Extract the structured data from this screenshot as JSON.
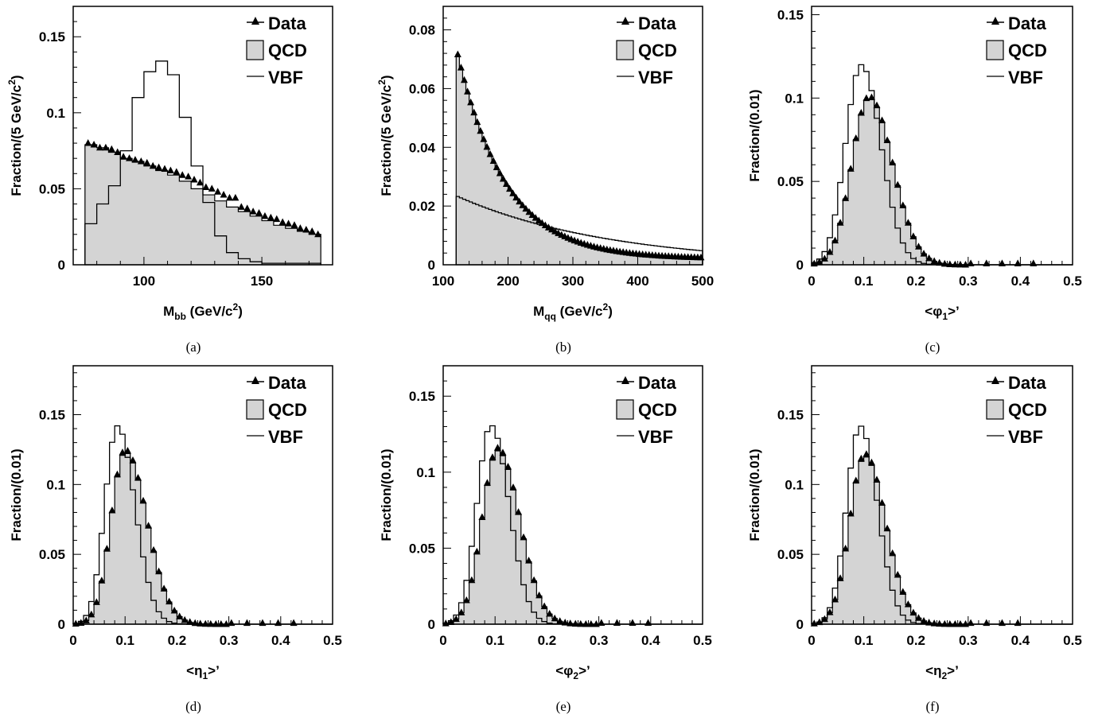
{
  "chart_data": [
    {
      "panel": "a",
      "caption": "(a)",
      "type": "histogram",
      "xlabel": {
        "main": "M",
        "sub": "bb",
        "rest": " (GeV/c",
        "sup": "2",
        "end": ")"
      },
      "ylabel": {
        "main": "Fraction/(5 GeV/c",
        "sup": "2",
        "end": ")"
      },
      "xlim": [
        70,
        180
      ],
      "ylim": [
        0,
        0.17
      ],
      "xticks": [
        100,
        150
      ],
      "xtick_labels": [
        "100",
        "150"
      ],
      "yticks": [
        0,
        0.05,
        0.1,
        0.15
      ],
      "ytick_labels": [
        "0",
        "0.05",
        "0.1",
        "0.15"
      ],
      "hist_x0": 75,
      "bin_width": 5,
      "qcd": [
        0.079,
        0.077,
        0.074,
        0.07,
        0.068,
        0.065,
        0.062,
        0.059,
        0.055,
        0.05,
        0.046,
        0.042,
        0.038,
        0.035,
        0.032,
        0.029,
        0.026,
        0.024,
        0.022,
        0.02
      ],
      "vbf": [
        0.027,
        0.04,
        0.052,
        0.075,
        0.11,
        0.127,
        0.134,
        0.125,
        0.097,
        0.065,
        0.041,
        0.019,
        0.008,
        0.004,
        0.002,
        0.001,
        0.001,
        0.001,
        0.001,
        0.001
      ],
      "data_x": [
        76.3,
        78.8,
        81.3,
        83.8,
        86.3,
        88.8,
        91.3,
        93.8,
        96.3,
        98.8,
        101.3,
        103.8,
        106.3,
        108.8,
        111.3,
        113.8,
        116.3,
        118.8,
        121.3,
        123.8,
        126.3,
        128.8,
        131.3,
        133.8,
        136.3,
        138.8,
        141.3,
        143.8,
        146.3,
        148.8,
        151.3,
        153.8,
        156.3,
        158.8,
        161.3,
        163.8,
        166.3,
        168.8,
        171.3,
        173.8
      ],
      "data_y": [
        0.08,
        0.079,
        0.077,
        0.077,
        0.076,
        0.074,
        0.071,
        0.07,
        0.069,
        0.068,
        0.067,
        0.065,
        0.064,
        0.063,
        0.062,
        0.061,
        0.059,
        0.058,
        0.056,
        0.054,
        0.051,
        0.05,
        0.048,
        0.046,
        0.044,
        0.044,
        0.038,
        0.037,
        0.035,
        0.034,
        0.032,
        0.031,
        0.03,
        0.028,
        0.027,
        0.026,
        0.024,
        0.023,
        0.022,
        0.02
      ]
    },
    {
      "panel": "b",
      "caption": "(b)",
      "type": "histogram",
      "xlabel": {
        "main": "M",
        "sub": "qq",
        "rest": " (GeV/c",
        "sup": "2",
        "end": ")"
      },
      "ylabel": {
        "main": "Fraction/(5 GeV/c",
        "sup": "2",
        "end": ")"
      },
      "xlim": [
        100,
        500
      ],
      "ylim": [
        0,
        0.088
      ],
      "xticks": [
        100,
        200,
        300,
        400,
        500
      ],
      "xtick_labels": [
        "100",
        "200",
        "300",
        "400",
        "500"
      ],
      "yticks": [
        0,
        0.02,
        0.04,
        0.06,
        0.08
      ],
      "ytick_labels": [
        "0",
        "0.02",
        "0.04",
        "0.06",
        "0.08"
      ],
      "hist_x0": 120,
      "bin_width": 5,
      "qcd_fn": {
        "a": 0.072,
        "k": 0.0134,
        "x0": 120
      },
      "vbf_fn": {
        "a": 0.0235,
        "k": 0.0042,
        "x0": 120
      },
      "data_fn": {
        "a": 0.072,
        "k": 0.0134,
        "x0": 120,
        "start": 122.5,
        "step": 5
      }
    },
    {
      "panel": "c",
      "caption": "(c)",
      "type": "histogram",
      "xlabel": {
        "main": "<φ",
        "sub": "1",
        "rest": ">’"
      },
      "ylabel": {
        "main": "Fraction/(0.01)"
      },
      "xlim": [
        0,
        0.5
      ],
      "ylim": [
        0,
        0.155
      ],
      "xticks": [
        0,
        0.1,
        0.2,
        0.3,
        0.4,
        0.5
      ],
      "xtick_labels": [
        "0",
        "0.1",
        "0.2",
        "0.3",
        "0.4",
        "0.5"
      ],
      "yticks": [
        0,
        0.05,
        0.1,
        0.15
      ],
      "ytick_labels": [
        "0",
        "0.05",
        "0.1",
        "0.15"
      ],
      "hist_x0": 0,
      "bin_width": 0.01,
      "qcd_fn": {
        "mode": 0.11,
        "peak": 0.1,
        "sl": 0.033,
        "sr": 0.045
      },
      "vbf_fn": {
        "mode": 0.095,
        "peak": 0.12,
        "sl": 0.03,
        "sr": 0.038
      },
      "data_fn": {
        "mode": 0.11,
        "peak": 0.101,
        "sl": 0.033,
        "sr": 0.045,
        "xmax": 0.43
      }
    },
    {
      "panel": "d",
      "caption": "(d)",
      "type": "histogram",
      "xlabel": {
        "main": "<η",
        "sub": "1",
        "rest": ">’"
      },
      "ylabel": {
        "main": "Fraction/(0.01)"
      },
      "xlim": [
        0,
        0.5
      ],
      "ylim": [
        0,
        0.185
      ],
      "xticks": [
        0,
        0.1,
        0.2,
        0.3,
        0.4,
        0.5
      ],
      "xtick_labels": [
        "0",
        "0.1",
        "0.2",
        "0.3",
        "0.4",
        "0.5"
      ],
      "yticks": [
        0,
        0.05,
        0.1,
        0.15
      ],
      "ytick_labels": [
        "0",
        "0.05",
        "0.1",
        "0.15"
      ],
      "hist_x0": 0,
      "bin_width": 0.01,
      "qcd_fn": {
        "mode": 0.1,
        "peak": 0.123,
        "sl": 0.027,
        "sr": 0.042
      },
      "vbf_fn": {
        "mode": 0.085,
        "peak": 0.142,
        "sl": 0.024,
        "sr": 0.034
      },
      "data_fn": {
        "mode": 0.1,
        "peak": 0.125,
        "sl": 0.027,
        "sr": 0.042,
        "xmax": 0.44
      }
    },
    {
      "panel": "e",
      "caption": "(e)",
      "type": "histogram",
      "xlabel": {
        "main": "<φ",
        "sub": "2",
        "rest": ">’"
      },
      "ylabel": {
        "main": "Fraction/(0.01)"
      },
      "xlim": [
        0,
        0.5
      ],
      "ylim": [
        0,
        0.17
      ],
      "xticks": [
        0,
        0.1,
        0.2,
        0.3,
        0.4,
        0.5
      ],
      "xtick_labels": [
        "0",
        "0.1",
        "0.2",
        "0.3",
        "0.4",
        "0.5"
      ],
      "yticks": [
        0,
        0.05,
        0.1,
        0.15
      ],
      "ytick_labels": [
        "0",
        "0.05",
        "0.1",
        "0.15"
      ],
      "hist_x0": 0,
      "bin_width": 0.01,
      "qcd_fn": {
        "mode": 0.105,
        "peak": 0.114,
        "sl": 0.03,
        "sr": 0.042
      },
      "vbf_fn": {
        "mode": 0.092,
        "peak": 0.131,
        "sl": 0.027,
        "sr": 0.035
      },
      "data_fn": {
        "mode": 0.105,
        "peak": 0.116,
        "sl": 0.03,
        "sr": 0.042,
        "xmax": 0.41
      }
    },
    {
      "panel": "f",
      "caption": "(f)",
      "type": "histogram",
      "xlabel": {
        "main": "<η",
        "sub": "2",
        "rest": ">’"
      },
      "ylabel": {
        "main": "Fraction/(0.01)"
      },
      "xlim": [
        0,
        0.5
      ],
      "ylim": [
        0,
        0.185
      ],
      "xticks": [
        0,
        0.1,
        0.2,
        0.3,
        0.4,
        0.5
      ],
      "xtick_labels": [
        "0",
        "0.1",
        "0.2",
        "0.3",
        "0.4",
        "0.5"
      ],
      "yticks": [
        0,
        0.05,
        0.1,
        0.15
      ],
      "ytick_labels": [
        "0",
        "0.05",
        "0.1",
        "0.15"
      ],
      "hist_x0": 0,
      "bin_width": 0.01,
      "qcd_fn": {
        "mode": 0.102,
        "peak": 0.12,
        "sl": 0.029,
        "sr": 0.04
      },
      "vbf_fn": {
        "mode": 0.093,
        "peak": 0.142,
        "sl": 0.026,
        "sr": 0.033
      },
      "data_fn": {
        "mode": 0.102,
        "peak": 0.122,
        "sl": 0.029,
        "sr": 0.04,
        "xmax": 0.42
      }
    }
  ],
  "legend": {
    "data": "Data",
    "qcd": "QCD",
    "vbf": "VBF"
  },
  "colors": {
    "qcd_fill": "#d4d4d4",
    "line": "#000000",
    "background": "#ffffff"
  }
}
